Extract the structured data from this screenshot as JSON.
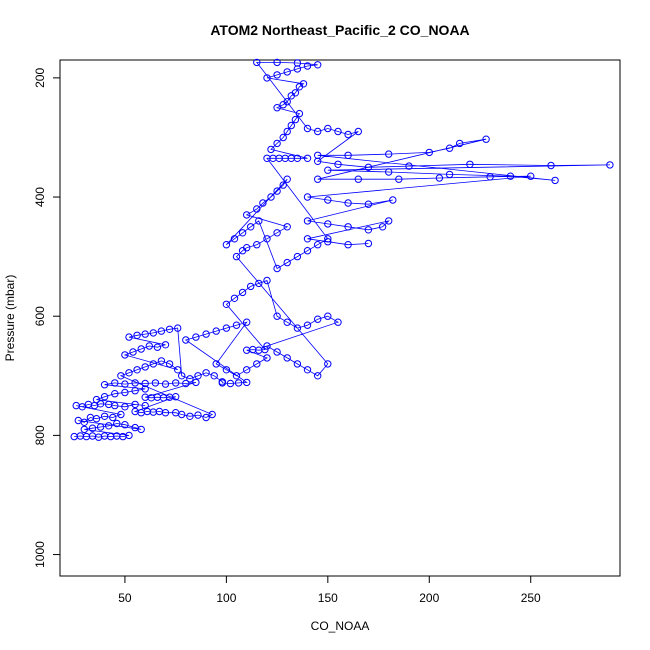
{
  "chart_data": {
    "type": "scatter",
    "title": "ATOM2 Northeast_Pacific_2 CO_NOAA",
    "xlabel": "CO_NOAA",
    "ylabel": "Pressure (mbar)",
    "xlim": [
      18,
      294
    ],
    "ylim": [
      1036,
      170
    ],
    "y_reversed": true,
    "x_ticks": [
      50,
      100,
      150,
      200,
      250
    ],
    "y_ticks": [
      200,
      400,
      600,
      800,
      1000
    ],
    "grid": false,
    "legend": "none",
    "marker": "open-circle",
    "connect_points": true,
    "point_color": "#0000ff",
    "series": [
      {
        "points": [
          [
            25,
            802
          ],
          [
            28,
            801
          ],
          [
            31,
            802
          ],
          [
            34,
            801
          ],
          [
            37,
            803
          ],
          [
            40,
            801
          ],
          [
            43,
            802
          ],
          [
            46,
            801
          ],
          [
            49,
            802
          ],
          [
            52,
            800
          ],
          [
            30,
            790
          ],
          [
            34,
            788
          ],
          [
            38,
            786
          ],
          [
            42,
            784
          ],
          [
            46,
            780
          ],
          [
            50,
            782
          ],
          [
            55,
            787
          ],
          [
            58,
            790
          ],
          [
            27,
            775
          ],
          [
            30,
            778
          ],
          [
            33,
            770
          ],
          [
            36,
            772
          ],
          [
            40,
            768
          ],
          [
            44,
            770
          ],
          [
            48,
            765
          ],
          [
            26,
            750
          ],
          [
            29,
            752
          ],
          [
            32,
            748
          ],
          [
            35,
            750
          ],
          [
            38,
            747
          ],
          [
            42,
            748
          ],
          [
            45,
            750
          ],
          [
            50,
            752
          ],
          [
            55,
            748
          ],
          [
            60,
            750
          ],
          [
            36,
            740
          ],
          [
            40,
            735
          ],
          [
            45,
            730
          ],
          [
            50,
            728
          ],
          [
            55,
            725
          ],
          [
            60,
            722
          ],
          [
            40,
            715
          ],
          [
            45,
            712
          ],
          [
            50,
            714
          ],
          [
            55,
            712
          ],
          [
            60,
            713
          ],
          [
            65,
            712
          ],
          [
            70,
            714
          ],
          [
            75,
            712
          ],
          [
            80,
            713
          ],
          [
            85,
            711
          ],
          [
            60,
            736
          ],
          [
            63,
            737
          ],
          [
            66,
            736
          ],
          [
            69,
            737
          ],
          [
            72,
            736
          ],
          [
            75,
            735
          ],
          [
            55,
            760
          ],
          [
            58,
            762
          ],
          [
            61,
            760
          ],
          [
            64,
            761
          ],
          [
            67,
            760
          ],
          [
            70,
            762
          ],
          [
            75,
            762
          ],
          [
            78,
            765
          ],
          [
            82,
            768
          ],
          [
            86,
            766
          ],
          [
            90,
            770
          ],
          [
            93,
            765
          ],
          [
            48,
            700
          ],
          [
            52,
            695
          ],
          [
            56,
            690
          ],
          [
            60,
            685
          ],
          [
            64,
            680
          ],
          [
            68,
            675
          ],
          [
            72,
            680
          ],
          [
            76,
            690
          ],
          [
            50,
            665
          ],
          [
            54,
            660
          ],
          [
            58,
            655
          ],
          [
            62,
            650
          ],
          [
            66,
            652
          ],
          [
            70,
            648
          ],
          [
            52,
            635
          ],
          [
            56,
            632
          ],
          [
            60,
            630
          ],
          [
            64,
            628
          ],
          [
            68,
            625
          ],
          [
            72,
            622
          ],
          [
            76,
            620
          ],
          [
            78,
            700
          ],
          [
            82,
            705
          ],
          [
            86,
            700
          ],
          [
            90,
            695
          ],
          [
            94,
            700
          ],
          [
            98,
            710
          ],
          [
            98,
            712
          ],
          [
            102,
            713
          ],
          [
            106,
            712
          ],
          [
            110,
            711
          ],
          [
            80,
            640
          ],
          [
            85,
            635
          ],
          [
            90,
            630
          ],
          [
            95,
            625
          ],
          [
            100,
            620
          ],
          [
            105,
            615
          ],
          [
            110,
            610
          ],
          [
            95,
            680
          ],
          [
            100,
            690
          ],
          [
            105,
            700
          ],
          [
            110,
            690
          ],
          [
            115,
            680
          ],
          [
            120,
            670
          ],
          [
            110,
            657
          ],
          [
            113,
            656
          ],
          [
            116,
            657
          ],
          [
            119,
            656
          ],
          [
            100,
            580
          ],
          [
            104,
            570
          ],
          [
            108,
            560
          ],
          [
            112,
            550
          ],
          [
            116,
            545
          ],
          [
            120,
            540
          ],
          [
            125,
            600
          ],
          [
            130,
            610
          ],
          [
            135,
            620
          ],
          [
            140,
            615
          ],
          [
            145,
            605
          ],
          [
            150,
            600
          ],
          [
            155,
            610
          ],
          [
            120,
            650
          ],
          [
            125,
            660
          ],
          [
            130,
            670
          ],
          [
            135,
            680
          ],
          [
            140,
            690
          ],
          [
            145,
            700
          ],
          [
            150,
            680
          ],
          [
            105,
            500
          ],
          [
            108,
            490
          ],
          [
            110,
            485
          ],
          [
            115,
            480
          ],
          [
            120,
            470
          ],
          [
            125,
            460
          ],
          [
            130,
            450
          ],
          [
            110,
            430
          ],
          [
            115,
            420
          ],
          [
            118,
            410
          ],
          [
            122,
            400
          ],
          [
            125,
            390
          ],
          [
            128,
            380
          ],
          [
            130,
            370
          ],
          [
            100,
            480
          ],
          [
            104,
            470
          ],
          [
            108,
            460
          ],
          [
            112,
            450
          ],
          [
            116,
            440
          ],
          [
            125,
            520
          ],
          [
            130,
            510
          ],
          [
            135,
            500
          ],
          [
            140,
            490
          ],
          [
            145,
            480
          ],
          [
            150,
            470
          ],
          [
            120,
            335
          ],
          [
            123,
            335
          ],
          [
            126,
            335
          ],
          [
            129,
            335
          ],
          [
            132,
            335
          ],
          [
            135,
            335
          ],
          [
            140,
            335
          ],
          [
            122,
            320
          ],
          [
            125,
            310
          ],
          [
            128,
            300
          ],
          [
            130,
            290
          ],
          [
            132,
            280
          ],
          [
            134,
            270
          ],
          [
            136,
            260
          ],
          [
            125,
            250
          ],
          [
            128,
            245
          ],
          [
            130,
            240
          ],
          [
            132,
            230
          ],
          [
            134,
            225
          ],
          [
            136,
            215
          ],
          [
            138,
            210
          ],
          [
            120,
            200
          ],
          [
            125,
            195
          ],
          [
            130,
            190
          ],
          [
            135,
            185
          ],
          [
            140,
            180
          ],
          [
            145,
            178
          ],
          [
            135,
            175
          ],
          [
            125,
            174
          ],
          [
            115,
            174
          ],
          [
            140,
            285
          ],
          [
            145,
            290
          ],
          [
            150,
            285
          ],
          [
            155,
            290
          ],
          [
            160,
            295
          ],
          [
            165,
            290
          ],
          [
            145,
            340
          ],
          [
            155,
            345
          ],
          [
            170,
            350
          ],
          [
            190,
            348
          ],
          [
            220,
            345
          ],
          [
            260,
            347
          ],
          [
            289,
            346
          ],
          [
            150,
            355
          ],
          [
            180,
            358
          ],
          [
            210,
            362
          ],
          [
            240,
            365
          ],
          [
            262,
            372
          ],
          [
            145,
            330
          ],
          [
            160,
            330
          ],
          [
            180,
            328
          ],
          [
            200,
            325
          ],
          [
            210,
            318
          ],
          [
            215,
            310
          ],
          [
            228,
            303
          ],
          [
            145,
            370
          ],
          [
            165,
            370
          ],
          [
            185,
            370
          ],
          [
            205,
            368
          ],
          [
            230,
            366
          ],
          [
            250,
            365
          ],
          [
            140,
            400
          ],
          [
            150,
            405
          ],
          [
            160,
            410
          ],
          [
            170,
            412
          ],
          [
            182,
            405
          ],
          [
            140,
            440
          ],
          [
            150,
            445
          ],
          [
            160,
            450
          ],
          [
            170,
            455
          ],
          [
            177,
            450
          ],
          [
            180,
            440
          ],
          [
            140,
            470
          ],
          [
            150,
            475
          ],
          [
            160,
            480
          ],
          [
            170,
            478
          ]
        ]
      }
    ]
  }
}
